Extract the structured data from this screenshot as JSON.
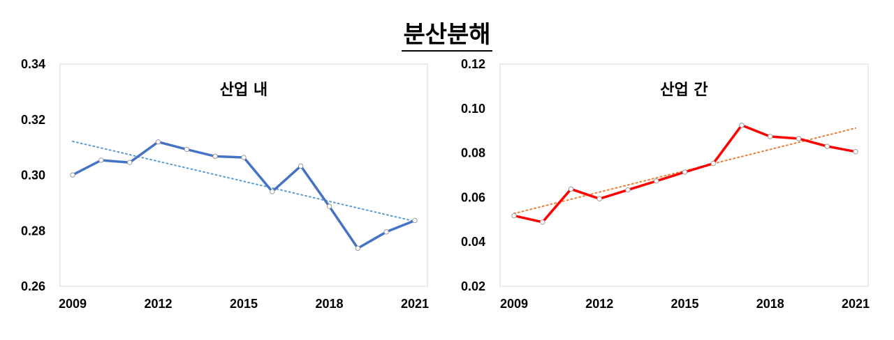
{
  "title": "분산분해",
  "chart_data": [
    {
      "type": "line",
      "title": "산업 내",
      "x": [
        2009,
        2010,
        2011,
        2012,
        2013,
        2014,
        2015,
        2016,
        2017,
        2018,
        2019,
        2020,
        2021
      ],
      "x_tick_labels": [
        "2009",
        "2012",
        "2015",
        "2018",
        "2021"
      ],
      "y_tick_labels": [
        "0.34",
        "0.32",
        "0.30",
        "0.28",
        "0.26"
      ],
      "ylim": [
        0.26,
        0.34
      ],
      "grid": false,
      "series": [
        {
          "values": [
            0.3001,
            0.3054,
            0.3046,
            0.312,
            0.3093,
            0.3068,
            0.3064,
            0.2941,
            0.3033,
            0.2888,
            0.2737,
            0.2796,
            0.2837
          ],
          "color": "#4472C4",
          "style": "solid"
        },
        {
          "trendline": "linear",
          "values": [
            0.3122,
            0.3098,
            0.3074,
            0.305,
            0.3026,
            0.3002,
            0.2978,
            0.2954,
            0.293,
            0.2906,
            0.2882,
            0.2858,
            0.2834
          ],
          "color": "#5B9BD5",
          "style": "dotted"
        }
      ]
    },
    {
      "type": "line",
      "title": "산업 간",
      "x": [
        2009,
        2010,
        2011,
        2012,
        2013,
        2014,
        2015,
        2016,
        2017,
        2018,
        2019,
        2020,
        2021
      ],
      "x_tick_labels": [
        "2009",
        "2012",
        "2015",
        "2018",
        "2021"
      ],
      "y_tick_labels": [
        "0.12",
        "0.10",
        "0.08",
        "0.06",
        "0.04",
        "0.02"
      ],
      "ylim": [
        0.02,
        0.12
      ],
      "grid": false,
      "series": [
        {
          "values": [
            0.0518,
            0.0489,
            0.0638,
            0.0594,
            0.0634,
            0.0674,
            0.0714,
            0.0753,
            0.0925,
            0.0874,
            0.0865,
            0.083,
            0.0806
          ],
          "color": "#FF0000",
          "style": "solid"
        },
        {
          "trendline": "linear",
          "values": [
            0.0528,
            0.056,
            0.0592,
            0.0624,
            0.0656,
            0.0688,
            0.072,
            0.0752,
            0.0784,
            0.0816,
            0.0848,
            0.088,
            0.0912
          ],
          "color": "#ED7D31",
          "style": "dotted"
        }
      ]
    }
  ]
}
